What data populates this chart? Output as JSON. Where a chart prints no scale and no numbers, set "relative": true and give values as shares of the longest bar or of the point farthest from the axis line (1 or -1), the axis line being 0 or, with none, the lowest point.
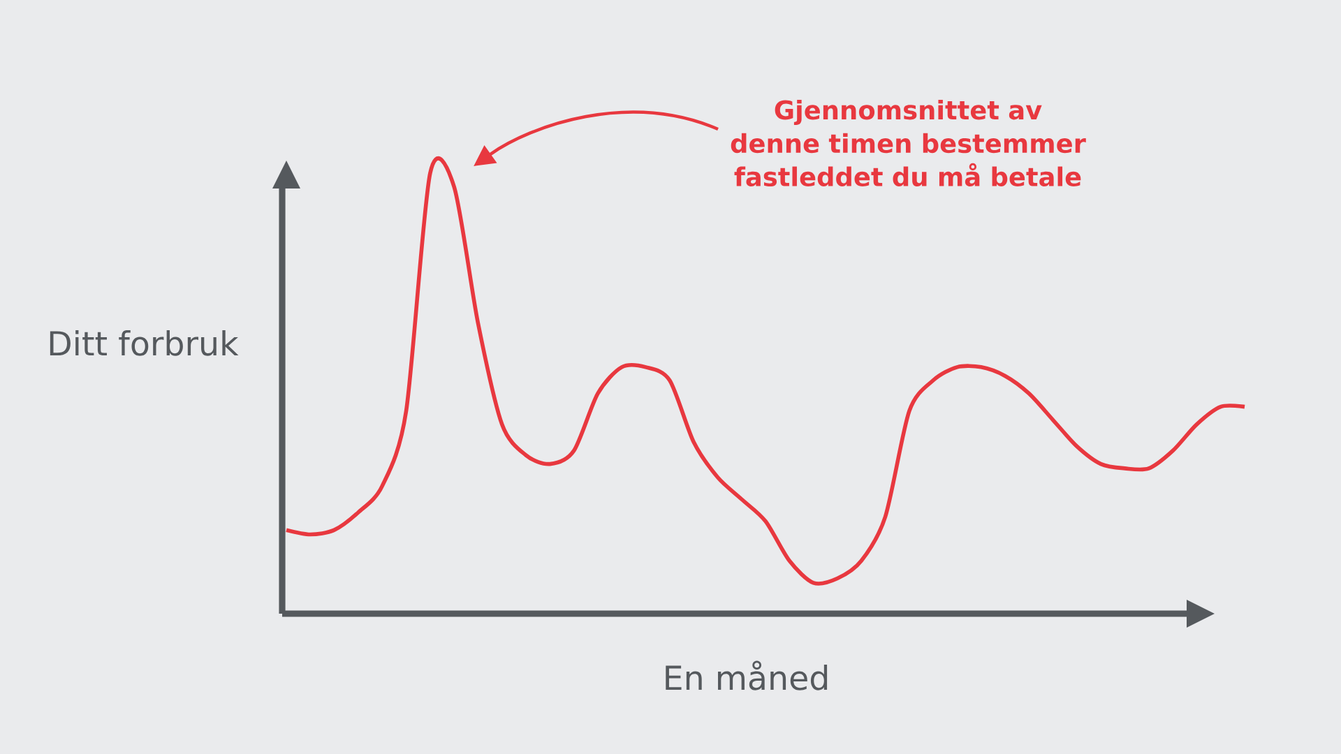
{
  "chart_data": {
    "type": "line",
    "relative": true,
    "xlabel": "En måned",
    "ylabel": "Ditt forbruk",
    "color": "#e8383f",
    "annotations": [
      "Gjennomsnittet av denne timen bestemmer fastleddet du må betale"
    ],
    "categories": [
      null,
      null,
      null,
      null,
      null,
      null,
      null,
      null,
      null,
      null,
      null,
      null,
      null,
      null,
      null,
      null,
      null,
      null,
      null,
      null,
      null,
      null,
      null,
      null,
      null,
      null,
      null,
      null,
      null,
      null,
      null,
      null,
      null,
      null,
      null,
      null,
      null,
      null,
      null,
      null,
      null
    ],
    "values": [
      0.19,
      0.18,
      0.19,
      0.23,
      0.29,
      0.46,
      1.0,
      0.97,
      0.66,
      0.43,
      0.36,
      0.34,
      0.37,
      0.5,
      0.56,
      0.56,
      0.53,
      0.39,
      0.31,
      0.26,
      0.21,
      0.12,
      0.07,
      0.08,
      0.12,
      0.22,
      0.46,
      0.53,
      0.56,
      0.56,
      0.54,
      0.5,
      0.44,
      0.38,
      0.34,
      0.33,
      0.33,
      0.37,
      0.43,
      0.47,
      0.47
    ]
  }
}
